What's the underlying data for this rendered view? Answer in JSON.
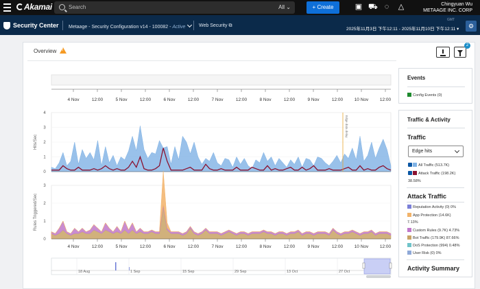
{
  "topbar": {
    "logo": "Akamai",
    "search_placeholder": "Search",
    "search_scope": "All",
    "create_label": "+ Create",
    "user_name": "Chingyuan Wu",
    "company": "METAAGE INC. CORP"
  },
  "secbar": {
    "title": "Security Center",
    "config_name": "Metaage - Security Configuration v14 - 100082 - ",
    "config_status": "Active",
    "web_security": "Web Security",
    "timezone": "GMT",
    "date_range": "2025年11月3日 下午12:11 - 2025年11月10日 下午12:11"
  },
  "overview": {
    "title": "Overview",
    "filter_badge": "2"
  },
  "chart_data": [
    {
      "type": "area",
      "name": "traffic",
      "ylabel": "Hits/Sec",
      "ylim": [
        0,
        4
      ],
      "yticks": [
        "4",
        "3",
        "2",
        "1",
        "0"
      ],
      "xticks": [
        "4 Nov",
        "12:00",
        "5 Nov",
        "12:00",
        "6 Nov",
        "12:00",
        "7 Nov",
        "12:00",
        "8 Nov",
        "12:00",
        "9 Nov",
        "12:00",
        "10 Nov",
        "12:00"
      ],
      "annotation": "Edge data delay",
      "series": [
        {
          "name": "All Traffic",
          "color": "#7fb2e5",
          "values": [
            0.3,
            0.2,
            0.6,
            1.3,
            0.4,
            0.7,
            2.0,
            0.5,
            1.5,
            0.9,
            1.3,
            0.8,
            2.1,
            0.4,
            1.7,
            0.6,
            1.1,
            0.4,
            1.0,
            0.8,
            1.4,
            2.4,
            1.4,
            3.1,
            1.5,
            0.9,
            1.3,
            1.2,
            2.1,
            1.6,
            1.7,
            0.5,
            1.7,
            0.8,
            2.4,
            2.0,
            1.2,
            2.0,
            1.0,
            0.5,
            0.9,
            0.7,
            1.3,
            0.6,
            0.4,
            0.9,
            0.8,
            0.3,
            1.0,
            0.5,
            0.9,
            0.4,
            0.2,
            0.8,
            0.6,
            1.3,
            0.7,
            1.0,
            0.4,
            0.9,
            0.6,
            0.3,
            0.8,
            0.5,
            1.0,
            0.3,
            0.9,
            0.8,
            0.4,
            1.0,
            0.9,
            0.6,
            0.4,
            0.7,
            1.1,
            0.6,
            1.2,
            0.9,
            1.6,
            0.8,
            2.4,
            0.7,
            1.1,
            2.0,
            0.9,
            1.6,
            2.2,
            1.5,
            0.4
          ]
        },
        {
          "name": "Attack Traffic",
          "color": "#8a1230",
          "values": [
            0.1,
            0.1,
            0.1,
            0.4,
            0.2,
            0.1,
            0.1,
            0.3,
            0.1,
            0.1,
            0.1,
            0.2,
            0.1,
            0.2,
            0.4,
            0.2,
            0.1,
            0.2,
            0.1,
            0.1,
            0.3,
            0.7,
            0.3,
            1.0,
            0.2,
            0.1,
            0.1,
            0.2,
            0.4,
            1.6,
            0.7,
            0.1,
            0.1,
            0.1,
            0.1,
            0.2,
            0.3,
            0.1,
            0.1,
            0.1,
            0.5,
            0.2,
            0.1,
            0.1,
            0.2,
            0.1,
            0.1,
            0.1,
            0.3,
            0.1,
            0.1,
            0.1,
            0.3,
            0.2,
            0.1,
            0.1,
            0.4,
            0.1,
            0.2,
            0.1,
            0.1,
            0.2,
            0.3,
            0.1,
            0.1,
            0.3,
            0.1,
            0.2,
            0.4,
            0.1,
            0.1,
            0.1,
            0.2,
            0.1,
            0.1,
            0.1,
            0.2,
            0.3,
            0.1,
            0.1,
            0.4,
            0.1,
            0.2,
            0.1,
            0.1,
            0.3,
            0.4,
            0.2,
            0.1
          ]
        }
      ]
    },
    {
      "type": "area",
      "name": "rules",
      "ylabel": "Rules Triggered/Sec",
      "ylim": [
        0,
        3
      ],
      "yticks": [
        "3",
        "2",
        "1",
        "0"
      ],
      "xticks": [
        "4 Nov",
        "12:00",
        "5 Nov",
        "12:00",
        "6 Nov",
        "12:00",
        "7 Nov",
        "12:00",
        "8 Nov",
        "12:00",
        "9 Nov",
        "12:00",
        "10 Nov",
        "12:00"
      ],
      "series": [
        {
          "name": "Bot Traffic",
          "color": "#c9a365",
          "values": [
            0.3,
            0.2,
            0.3,
            0.5,
            0.3,
            0.2,
            0.3,
            0.3,
            0.4,
            0.3,
            0.3,
            0.5,
            0.4,
            0.3,
            0.5,
            0.4,
            0.3,
            0.4,
            0.3,
            0.5,
            0.3,
            0.5,
            0.3,
            0.4,
            0.3,
            0.3,
            0.4,
            0.3,
            0.3,
            1.8,
            0.5,
            0.3,
            0.3,
            0.3,
            0.2,
            0.3,
            0.6,
            0.3,
            0.2,
            0.3,
            0.5,
            0.3,
            0.3,
            0.3,
            0.2,
            0.3,
            0.4,
            0.3,
            0.2,
            0.3,
            0.3,
            0.2,
            0.3,
            0.3,
            0.3,
            0.4,
            0.3,
            0.3,
            0.2,
            0.3,
            0.3,
            0.2,
            0.3,
            0.3,
            0.4,
            0.2,
            0.3,
            0.3,
            0.2,
            0.3,
            0.3,
            0.3,
            0.2,
            0.5,
            0.3,
            0.2,
            0.3,
            0.3,
            0.4,
            0.3,
            0.2,
            0.3,
            0.3,
            0.4,
            0.2,
            0.3,
            0.3,
            0.3,
            0.2
          ]
        },
        {
          "name": "Custom Rules",
          "color": "#c078c9",
          "values": [
            0.1,
            0.1,
            0.3,
            0.5,
            0.1,
            0.1,
            0.3,
            0.1,
            0.2,
            0.1,
            0.2,
            0.3,
            0.2,
            0.1,
            0.4,
            0.2,
            0.1,
            0.3,
            0.1,
            0.5,
            0.2,
            0.4,
            0.1,
            0.2,
            0.1,
            0.1,
            0.1,
            0.1,
            0.1,
            0.1,
            0.1,
            0.1,
            0.1,
            0.1,
            0.1,
            0.1,
            0.1,
            0.1,
            0.1,
            0.1,
            0.1,
            0.1,
            0.1,
            0.1,
            0.1,
            0.1,
            0.1,
            0.1,
            0.1,
            0.1,
            0.1,
            0.1,
            0.1,
            0.1,
            0.1,
            0.1,
            0.1,
            0.1,
            0.1,
            0.1,
            0.1,
            0.1,
            0.1,
            0.1,
            0.1,
            0.1,
            0.1,
            0.1,
            0.1,
            0.1,
            0.1,
            0.1,
            0.1,
            0.1,
            0.1,
            0.1,
            0.1,
            0.1,
            0.1,
            0.1,
            0.1,
            0.1,
            0.1,
            0.1,
            0.1,
            0.1,
            0.1,
            0.1,
            0.1
          ]
        },
        {
          "name": "App Protection",
          "color": "#f2b36a",
          "values": [
            0,
            0,
            0,
            0,
            0,
            0,
            0,
            0,
            0,
            0,
            0,
            0,
            0,
            0,
            0,
            0,
            0,
            0,
            0,
            0,
            0,
            0,
            0,
            0,
            0,
            0,
            0,
            0,
            0,
            1.9,
            0.3,
            0,
            0,
            0,
            0,
            0,
            0,
            0,
            0,
            0,
            0,
            0,
            0,
            0,
            0,
            0,
            0,
            0,
            0,
            0,
            0,
            0,
            0,
            0,
            0,
            0,
            0,
            0,
            0,
            0,
            0,
            0,
            0,
            0,
            0,
            0,
            0,
            0,
            0,
            0,
            0,
            0,
            0,
            0,
            0,
            0,
            0,
            0,
            0,
            0,
            0,
            0,
            0,
            0,
            0,
            0,
            0,
            0,
            0
          ]
        }
      ]
    },
    {
      "type": "line",
      "name": "overview_timeline",
      "xticks": [
        "18 Aug",
        "1 Sep",
        "15 Sep",
        "29 Sep",
        "13 Oct",
        "27 Oct"
      ]
    }
  ],
  "events": {
    "title": "Events",
    "items": [
      {
        "label": "Config Events (0)",
        "color": "#1e8a2e"
      }
    ]
  },
  "traffic_activity": {
    "title": "Traffic & Activity",
    "traffic_title": "Traffic",
    "select_value": "Edge hits",
    "legend": [
      {
        "label": "All Traffic (513.7K)",
        "color": "#7fb2e5"
      },
      {
        "label": "Attack Traffic (198.2K)",
        "color": "#8a1230"
      }
    ],
    "attack_pct": "38.58%",
    "attack_title": "Attack Traffic",
    "attack_legend": [
      {
        "label": "Reputation Activity (0) 0%",
        "color": "#7b7fd8"
      },
      {
        "label": "App Protection (14.6K)",
        "color": "#f2b36a"
      },
      {
        "label": "7.13%",
        "color": ""
      },
      {
        "label": "Custom Rules (9.7K) 4.73%",
        "color": "#c078c9"
      },
      {
        "label": "Bot Traffic (179.9K) 87.66%",
        "color": "#c9a365"
      },
      {
        "label": "DoS Protection (994) 0.48%",
        "color": "#6fc3c9"
      },
      {
        "label": "User Risk (0) 0%",
        "color": "#8fa9d8"
      }
    ],
    "activity_summary": "Activity Summary"
  }
}
